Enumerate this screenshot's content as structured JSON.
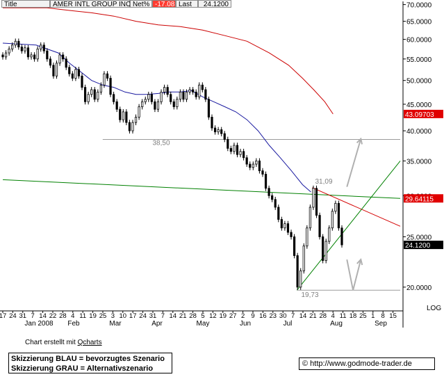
{
  "header": {
    "title": "Title",
    "instrument": "AMER INTL GROUP INC",
    "netpct_label": "Net%",
    "netpct_value": "-17.08",
    "last_label": "Last",
    "last_value": "24.1200"
  },
  "chart_data": {
    "type": "candlestick",
    "instrument": "AMER INTL GROUP INC",
    "ylim": [
      18,
      71
    ],
    "y_ticks": [
      "20.0000",
      "25.0000",
      "30.0000",
      "35.0000",
      "40.0000",
      "45.0000",
      "50.0000",
      "55.0000",
      "60.0000",
      "65.0000",
      "70.0000"
    ],
    "y_scale_label": "LOG",
    "x_day_labels": [
      "17",
      "24",
      "31",
      "7",
      "14",
      "22",
      "28",
      "4",
      "11",
      "19",
      "25",
      "3",
      "10",
      "17",
      "24",
      "31",
      "7",
      "14",
      "21",
      "28",
      "5",
      "12",
      "19",
      "27",
      "2",
      "9",
      "16",
      "23",
      "30",
      "7",
      "14",
      "21",
      "28",
      "4",
      "11",
      "18",
      "25",
      "1",
      "8",
      "15"
    ],
    "x_month_labels": [
      "Jan 2008",
      "Feb",
      "Mar",
      "Apr",
      "May",
      "Jun",
      "Jul",
      "Aug",
      "Sep"
    ],
    "price_tags": [
      {
        "value": "43.09703",
        "color": "#e00000",
        "series": "200-day moving average"
      },
      {
        "value": "29.64115",
        "color": "#e00000",
        "series": "horizontal resistance line"
      },
      {
        "value": "24.1200",
        "color": "#000000",
        "series": "last price"
      }
    ],
    "annotations": [
      "38,50",
      "31,09",
      "19,73"
    ],
    "closes": [
      55.5,
      56.5,
      57.5,
      58.5,
      59.5,
      58.0,
      57.0,
      57.8,
      55.5,
      56.0,
      55.0,
      57.5,
      58.5,
      57.0,
      55.0,
      53.5,
      51.0,
      54.0,
      56.0,
      55.0,
      53.0,
      51.5,
      50.5,
      52.5,
      51.0,
      48.5,
      45.5,
      47.0,
      48.0,
      46.0,
      47.5,
      49.0,
      51.5,
      50.5,
      47.0,
      45.5,
      44.0,
      42.0,
      43.5,
      41.5,
      40.0,
      41.5,
      42.5,
      44.5,
      45.5,
      46.0,
      47.0,
      45.5,
      44.0,
      45.5,
      47.5,
      48.5,
      47.0,
      45.5,
      44.5,
      46.0,
      47.5,
      46.0,
      47.5,
      48.0,
      47.5,
      46.5,
      49.0,
      48.0,
      46.0,
      42.5,
      40.5,
      39.8,
      40.2,
      39.5,
      38.5,
      37.0,
      36.5,
      37.5,
      36.0,
      36.5,
      35.5,
      34.5,
      34.0,
      34.5,
      35.0,
      33.5,
      33.0,
      31.0,
      30.0,
      29.5,
      28.5,
      27.0,
      26.0,
      26.5,
      25.5,
      25.0,
      23.0,
      20.0,
      21.5,
      24.0,
      26.0,
      28.5,
      31.0,
      27.5,
      25.0,
      22.5,
      24.5,
      26.0,
      28.0,
      29.0,
      26.0,
      24.12
    ],
    "ma200": [
      [
        0,
        69.0
      ],
      [
        80,
        69.0
      ],
      [
        160,
        69.0
      ],
      [
        240,
        68.2
      ],
      [
        320,
        67.5
      ],
      [
        400,
        66.5
      ],
      [
        480,
        65.0
      ],
      [
        560,
        64.0
      ],
      [
        640,
        63.5
      ],
      [
        720,
        62.5
      ],
      [
        800,
        61.0
      ],
      [
        880,
        59.5
      ],
      [
        960,
        56.5
      ],
      [
        1030,
        53.5
      ],
      [
        1080,
        50.5
      ],
      [
        1120,
        48.0
      ],
      [
        1160,
        45.5
      ],
      [
        1190,
        43.1
      ]
    ],
    "ma50": [
      [
        0,
        59.0
      ],
      [
        120,
        58.5
      ],
      [
        200,
        56.5
      ],
      [
        240,
        54.0
      ],
      [
        280,
        52.0
      ],
      [
        320,
        50.0
      ],
      [
        360,
        49.0
      ],
      [
        400,
        48.5
      ],
      [
        440,
        47.5
      ],
      [
        480,
        47.0
      ],
      [
        520,
        47.0
      ],
      [
        560,
        47.2
      ],
      [
        600,
        47.5
      ],
      [
        640,
        47.5
      ],
      [
        680,
        47.8
      ],
      [
        720,
        46.5
      ],
      [
        760,
        45.5
      ],
      [
        800,
        44.5
      ],
      [
        840,
        43.5
      ],
      [
        880,
        42.0
      ],
      [
        920,
        40.0
      ],
      [
        960,
        37.5
      ],
      [
        1000,
        35.5
      ],
      [
        1040,
        33.5
      ],
      [
        1080,
        31.5
      ],
      [
        1110,
        30.5
      ]
    ],
    "green_horizontal": [
      [
        0,
        32.2
      ],
      [
        1432,
        29.64
      ]
    ],
    "support_low": [
      [
        0,
        38.5
      ],
      [
        1432,
        38.5
      ]
    ],
    "bottom_line": [
      [
        0,
        19.73
      ],
      [
        1432,
        19.73
      ]
    ],
    "upper_trend": [
      [
        1115,
        31.09
      ],
      [
        1432,
        26.2
      ]
    ],
    "lower_trend": [
      [
        1060,
        19.73
      ],
      [
        1432,
        35.0
      ]
    ],
    "scenario_grey": [
      [
        [
          1240,
          31.2
        ],
        [
          1290,
          38.6
        ]
      ],
      [
        [
          1240,
          22.6
        ],
        [
          1262,
          19.73
        ],
        [
          1290,
          22.6
        ]
      ]
    ],
    "scenario_legend": [
      "Skizzierung BLAU = bevorzugtes Szenario",
      "Skizzierung GRAU = Alternativszenario"
    ]
  },
  "footer": {
    "made_with_prefix": "Chart erstellt mit ",
    "made_with_link": "Qcharts",
    "legend_blue": "Skizzierung BLAU = bevorzugtes Szenario",
    "legend_grey": "Skizzierung GRAU = Alternativszenario",
    "copyright": "© http://www.godmode-trader.de"
  },
  "colors": {
    "ma200": "#cc0000",
    "ma50": "#1a1aa0",
    "horizontal": "#008000",
    "trend_up": "#d40000",
    "trend_support": "#008000",
    "annotation": "#808080",
    "grid": "#c8c8c8"
  }
}
